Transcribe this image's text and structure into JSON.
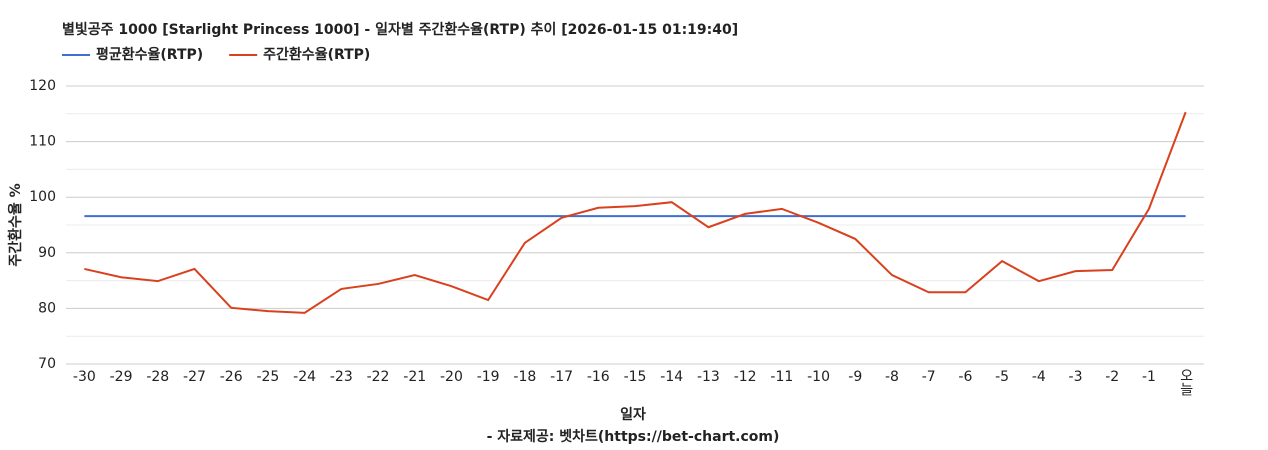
{
  "chart_data": {
    "type": "line",
    "title": "별빛공주 1000 [Starlight Princess 1000] - 일자별 주간환수율(RTP) 추이 [2026-01-15 01:19:40]",
    "y_label": "주간환수율 %",
    "x_label": "일자",
    "source": "- 자료제공: 벳차트(https://bet-chart.com)",
    "categories": [
      "-30",
      "-29",
      "-28",
      "-27",
      "-26",
      "-25",
      "-24",
      "-23",
      "-22",
      "-21",
      "-20",
      "-19",
      "-18",
      "-17",
      "-16",
      "-15",
      "-14",
      "-13",
      "-12",
      "-11",
      "-10",
      "-9",
      "-8",
      "-7",
      "-6",
      "-5",
      "-4",
      "-3",
      "-2",
      "-1",
      "오늘"
    ],
    "series": [
      {
        "name": "평균환수율(RTP)",
        "color": "#3f6fd1",
        "values": [
          96.6,
          96.6,
          96.6,
          96.6,
          96.6,
          96.6,
          96.6,
          96.6,
          96.6,
          96.6,
          96.6,
          96.6,
          96.6,
          96.6,
          96.6,
          96.6,
          96.6,
          96.6,
          96.6,
          96.6,
          96.6,
          96.6,
          96.6,
          96.6,
          96.6,
          96.6,
          96.6,
          96.6,
          96.6,
          96.6,
          96.6
        ]
      },
      {
        "name": "주간환수율(RTP)",
        "color": "#d9411e",
        "values": [
          87.1,
          85.6,
          84.9,
          87.1,
          80.1,
          79.5,
          79.2,
          83.5,
          84.4,
          86.0,
          84.0,
          81.5,
          91.8,
          96.3,
          98.1,
          98.4,
          99.1,
          94.6,
          97.0,
          97.9,
          95.4,
          92.5,
          86.0,
          82.9,
          82.9,
          88.5,
          84.9,
          86.7,
          86.9,
          97.9,
          115.3
        ]
      }
    ],
    "ylim": [
      70,
      120
    ],
    "yticks": [
      70,
      80,
      90,
      100,
      110,
      120
    ],
    "y_minor_gridlines": [
      75,
      85,
      95,
      105,
      115
    ],
    "grid": true,
    "legend": "top-left"
  }
}
